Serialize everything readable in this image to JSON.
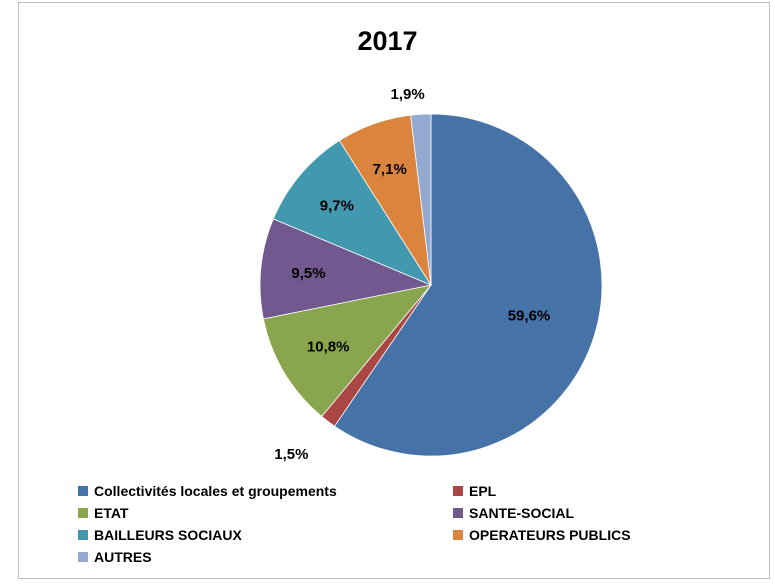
{
  "chart_data": {
    "type": "pie",
    "title": "2017",
    "categories": [
      "Collectivités locales et groupements",
      "EPL",
      "ETAT",
      "SANTE-SOCIAL",
      "BAILLEURS SOCIAUX",
      "OPERATEURS PUBLICS",
      "AUTRES"
    ],
    "values": [
      59.6,
      1.5,
      10.8,
      9.5,
      9.7,
      7.1,
      1.9
    ],
    "labels": [
      "59,6%",
      "1,5%",
      "10,8%",
      "9,5%",
      "9,7%",
      "7,1%",
      "1,9%"
    ],
    "colors": [
      "#4572A7",
      "#AA4643",
      "#89A54E",
      "#71588F",
      "#4198AF",
      "#DB843D",
      "#93A9CF"
    ],
    "legend_position": "bottom"
  }
}
